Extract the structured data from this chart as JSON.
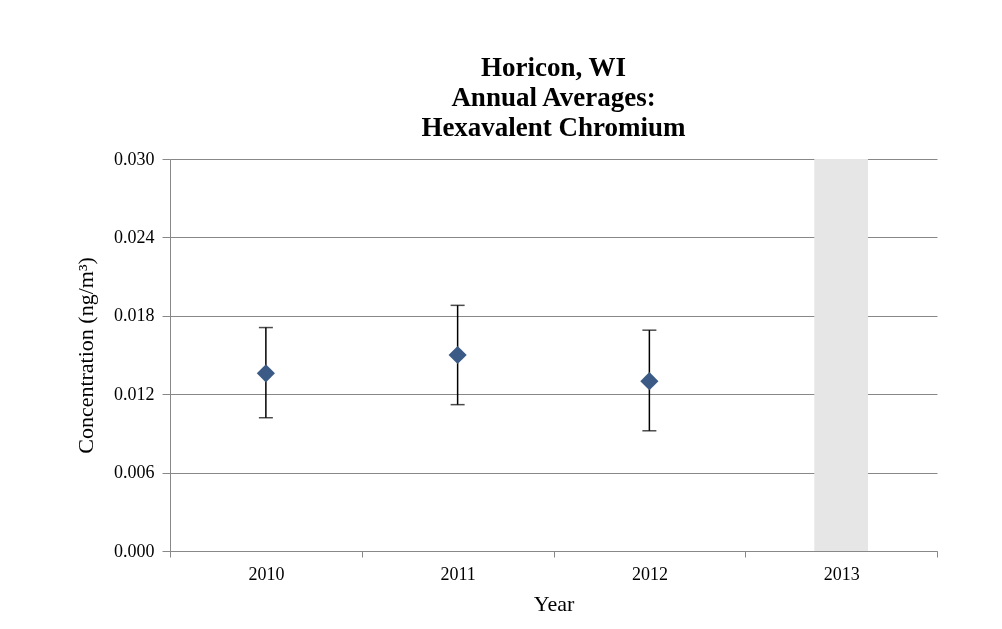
{
  "chart_data": {
    "type": "scatter",
    "title": "Horicon, WI\nAnnual Averages:\nHexavalent Chromium",
    "xlabel": "Year",
    "ylabel": "Concentration (ng/m³)",
    "categories": [
      "2010",
      "2011",
      "2012",
      "2013"
    ],
    "series": [
      {
        "color": "#3b5b86",
        "values": [
          0.0136,
          0.015,
          0.013,
          null
        ],
        "errors": [
          [
            0.0102,
            0.0171
          ],
          [
            0.0112,
            0.0188
          ],
          [
            0.0092,
            0.0169
          ],
          null
        ]
      }
    ],
    "ylim": [
      0,
      0.03
    ],
    "yticks": [
      {
        "value": 0,
        "label": "0.000"
      },
      {
        "value": 0.006,
        "label": "0.006"
      },
      {
        "value": 0.012,
        "label": "0.012"
      },
      {
        "value": 0.018,
        "label": "0.018"
      },
      {
        "value": 0.024,
        "label": "0.024"
      },
      {
        "value": 0.03,
        "label": "0.030"
      }
    ],
    "bands": [
      {
        "axis": "x",
        "from": "2013",
        "to": "2013",
        "color": "#e6e6e6"
      }
    ],
    "grid": "y",
    "marker": "diamond"
  }
}
